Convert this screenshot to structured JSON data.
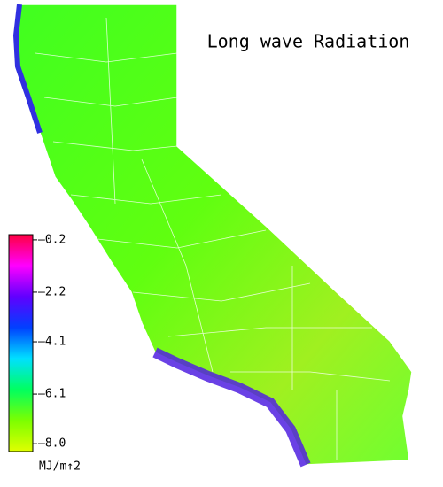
{
  "title": "Long wave Radiation",
  "legend": {
    "unit": "MJ/m↑2",
    "lim": [
      -8.3,
      0
    ],
    "colors": [
      "#e0ff00",
      "#7cff00",
      "#00ff60",
      "#00e0ff",
      "#0040ff",
      "#6000ff",
      "#ff00ff",
      "#ff0040"
    ],
    "ticks": [
      {
        "value": -0.2,
        "label": "–0.2"
      },
      {
        "value": -2.2,
        "label": "–2.2"
      },
      {
        "value": -4.1,
        "label": "–4.1"
      },
      {
        "value": -6.1,
        "label": "–6.1"
      },
      {
        "value": -8,
        "label": "–8.0"
      }
    ]
  }
}
